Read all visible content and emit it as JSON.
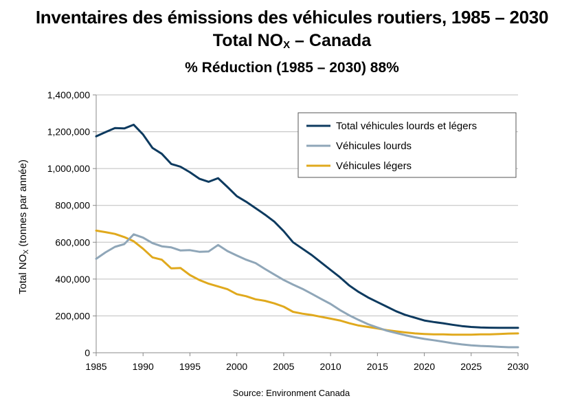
{
  "chart_data": {
    "type": "line",
    "title_line1": "Inventaires des émissions des véhicules routiers, 1985 – 2030",
    "title_line2_prefix": "Total NO",
    "title_line2_sub": "X",
    "title_line2_suffix": " – Canada",
    "subtitle": "% Réduction (1985 – 2030) 88%",
    "ylabel_prefix": "Total NO",
    "ylabel_sub": "X",
    "ylabel_suffix": " (tonnes par année)",
    "xlabel": "",
    "source": "Source: Environment Canada",
    "xlim": [
      1985,
      2030
    ],
    "ylim": [
      0,
      1400000
    ],
    "x_ticks": [
      1985,
      1990,
      1995,
      2000,
      2005,
      2010,
      2015,
      2020,
      2025,
      2030
    ],
    "y_ticks": [
      0,
      200000,
      400000,
      600000,
      800000,
      1000000,
      1200000,
      1400000
    ],
    "y_tick_labels": [
      "0",
      "200,000",
      "400,000",
      "600,000",
      "800,000",
      "1,000,000",
      "1,200,000",
      "1,400,000"
    ],
    "grid": "horizontal",
    "legend_position": "top-right",
    "x": [
      1985,
      1986,
      1987,
      1988,
      1989,
      1990,
      1991,
      1992,
      1993,
      1994,
      1995,
      1996,
      1997,
      1998,
      1999,
      2000,
      2001,
      2002,
      2003,
      2004,
      2005,
      2006,
      2007,
      2008,
      2009,
      2010,
      2011,
      2012,
      2013,
      2014,
      2015,
      2016,
      2017,
      2018,
      2019,
      2020,
      2021,
      2022,
      2023,
      2024,
      2025,
      2026,
      2027,
      2028,
      2029,
      2030
    ],
    "series": [
      {
        "name": "Total véhicules lourds et légers",
        "color": "#0d3a5f",
        "values": [
          1175000,
          1198000,
          1220000,
          1218000,
          1238000,
          1185000,
          1112000,
          1080000,
          1025000,
          1010000,
          980000,
          945000,
          928000,
          948000,
          900000,
          850000,
          820000,
          785000,
          750000,
          712000,
          660000,
          600000,
          565000,
          530000,
          490000,
          450000,
          410000,
          365000,
          330000,
          300000,
          275000,
          250000,
          225000,
          205000,
          190000,
          175000,
          167000,
          160000,
          152000,
          145000,
          140000,
          137000,
          136000,
          135000,
          135000,
          135000
        ]
      },
      {
        "name": "Véhicules lourds",
        "color": "#8fa6b8",
        "values": [
          510000,
          545000,
          575000,
          590000,
          643000,
          625000,
          595000,
          578000,
          572000,
          555000,
          557000,
          548000,
          550000,
          585000,
          552000,
          528000,
          505000,
          487000,
          455000,
          425000,
          395000,
          370000,
          347000,
          320000,
          292000,
          265000,
          232000,
          203000,
          178000,
          155000,
          137000,
          120000,
          107000,
          95000,
          84000,
          75000,
          68000,
          60000,
          52000,
          45000,
          40000,
          37000,
          35000,
          32000,
          30000,
          30000
        ]
      },
      {
        "name": "Véhicules légers",
        "color": "#e0a91d",
        "values": [
          663000,
          655000,
          645000,
          628000,
          605000,
          565000,
          518000,
          505000,
          458000,
          460000,
          422000,
          395000,
          375000,
          360000,
          345000,
          318000,
          307000,
          290000,
          282000,
          268000,
          250000,
          222000,
          212000,
          205000,
          195000,
          185000,
          175000,
          160000,
          148000,
          140000,
          132000,
          123000,
          116000,
          110000,
          105000,
          102000,
          100000,
          100000,
          98000,
          98000,
          98000,
          100000,
          100000,
          102000,
          104000,
          105000
        ]
      }
    ]
  }
}
